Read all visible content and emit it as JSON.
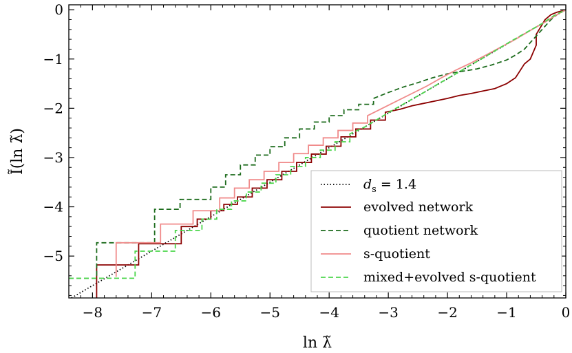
{
  "chart_data": {
    "type": "line",
    "title": "",
    "xlabel": "ln λ̃",
    "ylabel": "Ĩ(ln λ̃)",
    "xlim": [
      -8.4,
      0.0
    ],
    "ylim": [
      -5.85,
      0.1
    ],
    "xticks": [
      -8,
      -7,
      -6,
      -5,
      -4,
      -3,
      -2,
      -1,
      0
    ],
    "yticks": [
      0,
      -1,
      -2,
      -3,
      -4,
      -5
    ],
    "xtick_labels": [
      "−8",
      "−7",
      "−6",
      "−5",
      "−4",
      "−3",
      "−2",
      "−1",
      "0"
    ],
    "ytick_labels": [
      "0",
      "−1",
      "−2",
      "−3",
      "−4",
      "−5"
    ],
    "legend_position": "bottom-right",
    "series": [
      {
        "name": "d_s = 1.4",
        "label_main": "d",
        "label_sub": "s",
        "label_rest": " = 1.4",
        "style": "dotted",
        "color": "#000000",
        "x": [
          -8.4,
          0.0
        ],
        "y": [
          -5.88,
          0.0
        ]
      },
      {
        "name": "evolved network",
        "style": "solid",
        "color": "#8b0000",
        "x": [
          -7.93,
          -7.93,
          -7.22,
          -7.22,
          -6.5,
          -6.5,
          -6.23,
          -6.23,
          -6.0,
          -6.0,
          -5.78,
          -5.78,
          -5.55,
          -5.55,
          -5.3,
          -5.3,
          -5.05,
          -5.05,
          -4.8,
          -4.8,
          -4.55,
          -4.55,
          -4.3,
          -4.3,
          -4.05,
          -4.05,
          -3.8,
          -3.8,
          -3.55,
          -3.55,
          -3.3,
          -3.3,
          -3.05,
          -3.05,
          -2.8,
          -2.6,
          -2.4,
          -2.2,
          -2.0,
          -1.8,
          -1.6,
          -1.4,
          -1.2,
          -1.0,
          -0.85,
          -0.7,
          -0.6,
          -0.5,
          -0.5,
          -0.35,
          -0.25,
          -0.15,
          -0.05,
          0.0
        ],
        "y": [
          -5.85,
          -5.18,
          -5.18,
          -4.75,
          -4.75,
          -4.4,
          -4.4,
          -4.25,
          -4.25,
          -4.08,
          -4.08,
          -3.95,
          -3.95,
          -3.8,
          -3.8,
          -3.62,
          -3.62,
          -3.45,
          -3.45,
          -3.28,
          -3.28,
          -3.1,
          -3.1,
          -2.93,
          -2.93,
          -2.77,
          -2.77,
          -2.58,
          -2.58,
          -2.42,
          -2.42,
          -2.24,
          -2.24,
          -2.08,
          -2.02,
          -1.95,
          -1.9,
          -1.85,
          -1.8,
          -1.74,
          -1.7,
          -1.65,
          -1.6,
          -1.5,
          -1.38,
          -1.1,
          -1.0,
          -0.72,
          -0.5,
          -0.2,
          -0.1,
          -0.05,
          -0.02,
          0.0
        ]
      },
      {
        "name": "quotient network",
        "style": "dashed",
        "color": "#1c6b1c",
        "x": [
          -8.4,
          -7.93,
          -7.93,
          -6.95,
          -6.95,
          -6.52,
          -6.52,
          -6.0,
          -6.0,
          -5.75,
          -5.75,
          -5.5,
          -5.5,
          -5.25,
          -5.25,
          -5.0,
          -5.0,
          -4.75,
          -4.75,
          -4.5,
          -4.5,
          -4.25,
          -4.25,
          -4.0,
          -4.0,
          -3.75,
          -3.75,
          -3.5,
          -3.5,
          -3.25,
          -3.25,
          -3.0,
          -2.75,
          -2.5,
          -2.25,
          -2.0,
          -1.75,
          -1.5,
          -1.25,
          -1.0,
          -0.85,
          -0.7,
          -0.55,
          -0.4,
          -0.25,
          -0.15,
          0.0
        ],
        "y": [
          -5.45,
          -5.45,
          -4.73,
          -4.73,
          -4.05,
          -4.05,
          -3.85,
          -3.85,
          -3.6,
          -3.6,
          -3.35,
          -3.35,
          -3.15,
          -3.15,
          -2.95,
          -2.95,
          -2.78,
          -2.78,
          -2.6,
          -2.6,
          -2.42,
          -2.42,
          -2.28,
          -2.28,
          -2.15,
          -2.15,
          -2.03,
          -2.03,
          -1.92,
          -1.92,
          -1.8,
          -1.68,
          -1.57,
          -1.48,
          -1.38,
          -1.3,
          -1.25,
          -1.2,
          -1.12,
          -1.02,
          -0.92,
          -0.8,
          -0.6,
          -0.4,
          -0.2,
          -0.1,
          0.0
        ]
      },
      {
        "name": "s-quotient",
        "style": "solid",
        "color": "#f08a8a",
        "x": [
          -7.6,
          -7.6,
          -6.85,
          -6.85,
          -6.3,
          -6.3,
          -5.85,
          -5.85,
          -5.6,
          -5.6,
          -5.35,
          -5.35,
          -5.1,
          -5.1,
          -4.85,
          -4.85,
          -4.6,
          -4.6,
          -4.35,
          -4.35,
          -4.1,
          -4.1,
          -3.85,
          -3.85,
          -3.6,
          -3.6,
          -3.35,
          -3.35,
          -3.1,
          -2.85,
          -2.6,
          -2.35,
          -2.1,
          -1.85,
          -1.6,
          -1.35,
          -1.1,
          -0.85,
          -0.6,
          -0.35,
          -0.15,
          0.0
        ],
        "y": [
          -5.42,
          -4.73,
          -4.73,
          -4.35,
          -4.35,
          -4.08,
          -4.08,
          -3.82,
          -3.82,
          -3.62,
          -3.62,
          -3.45,
          -3.45,
          -3.28,
          -3.28,
          -3.1,
          -3.1,
          -2.92,
          -2.92,
          -2.75,
          -2.75,
          -2.6,
          -2.6,
          -2.45,
          -2.45,
          -2.3,
          -2.3,
          -2.15,
          -2.0,
          -1.85,
          -1.7,
          -1.55,
          -1.38,
          -1.22,
          -1.08,
          -0.92,
          -0.76,
          -0.6,
          -0.42,
          -0.25,
          -0.1,
          0.0
        ]
      },
      {
        "name": "mixed+evolved s-quotient",
        "style": "dashed",
        "color": "#4cd64c",
        "x": [
          -8.4,
          -7.28,
          -7.28,
          -6.6,
          -6.6,
          -6.15,
          -6.15,
          -5.9,
          -5.9,
          -5.65,
          -5.65,
          -5.4,
          -5.4,
          -5.15,
          -5.15,
          -4.9,
          -4.9,
          -4.65,
          -4.65,
          -4.4,
          -4.4,
          -4.15,
          -4.15,
          -3.9,
          -3.9,
          -3.65,
          -3.65,
          -3.4,
          -3.15,
          -2.9,
          -2.65,
          -2.4,
          -2.15,
          -1.9,
          -1.65,
          -1.4,
          -1.15,
          -0.9,
          -0.65,
          -0.4,
          -0.2,
          0.0
        ],
        "y": [
          -5.45,
          -5.45,
          -4.9,
          -4.9,
          -4.48,
          -4.48,
          -4.25,
          -4.25,
          -4.05,
          -4.05,
          -3.88,
          -3.88,
          -3.7,
          -3.7,
          -3.52,
          -3.52,
          -3.35,
          -3.35,
          -3.18,
          -3.18,
          -3.0,
          -3.0,
          -2.85,
          -2.85,
          -2.68,
          -2.68,
          -2.52,
          -2.38,
          -2.2,
          -2.02,
          -1.85,
          -1.68,
          -1.5,
          -1.33,
          -1.15,
          -0.98,
          -0.8,
          -0.62,
          -0.45,
          -0.28,
          -0.12,
          0.0
        ]
      }
    ]
  }
}
